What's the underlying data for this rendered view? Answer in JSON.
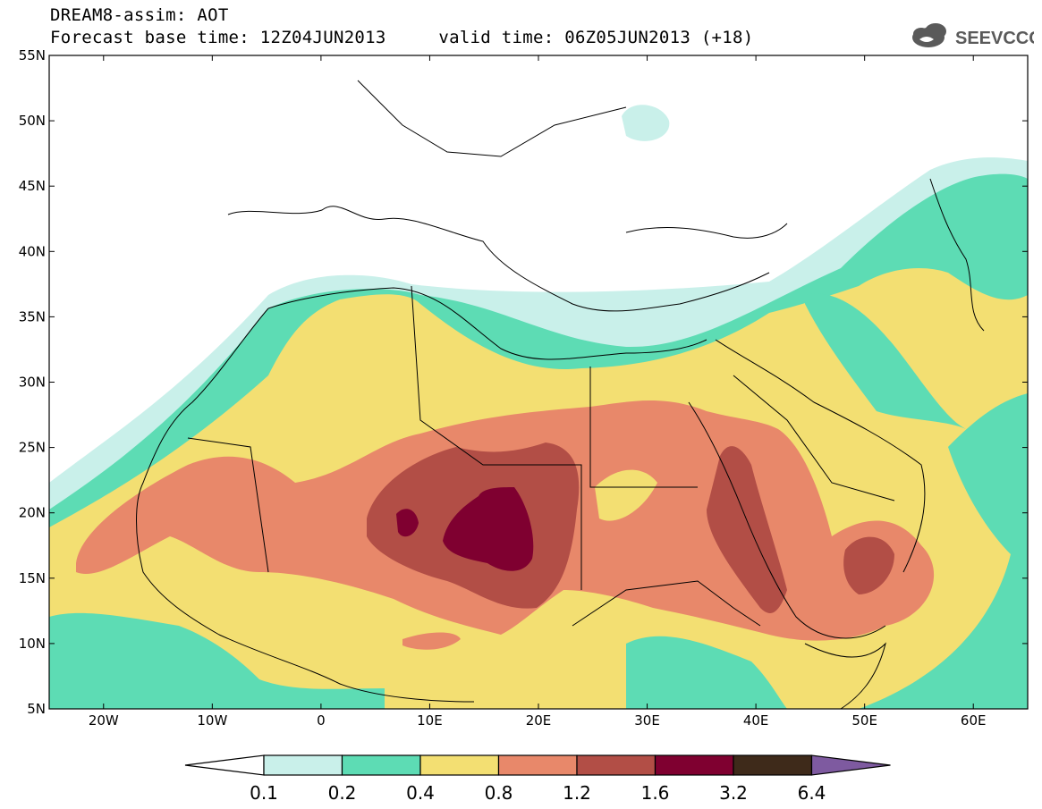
{
  "header": {
    "title_line1": "DREAM8-assim: AOT",
    "title_line2": "Forecast base time: 12Z04JUN2013     valid time: 06Z05JUN2013 (+18)"
  },
  "logo": {
    "text": "SEEVCCC",
    "icon": "cloud-icon",
    "color": "#5a5a5a"
  },
  "map": {
    "lon_range": [
      -25,
      65
    ],
    "lat_range": [
      5,
      55
    ],
    "lat_labels": [
      "55N",
      "50N",
      "45N",
      "40N",
      "35N",
      "30N",
      "25N",
      "20N",
      "15N",
      "10N",
      "5N"
    ],
    "lon_labels": [
      "20W",
      "10W",
      "0",
      "10E",
      "20E",
      "30E",
      "40E",
      "50E",
      "60E"
    ]
  },
  "colorbar": {
    "levels": [
      "0.1",
      "0.2",
      "0.4",
      "0.8",
      "1.2",
      "1.6",
      "3.2",
      "6.4"
    ],
    "colors": [
      "#c9f0ea",
      "#5ddcb4",
      "#f3df72",
      "#e8886a",
      "#b24e46",
      "#7f0030",
      "#3e2a1a",
      "#7e5aa0"
    ],
    "under_color": "#ffffff"
  }
}
